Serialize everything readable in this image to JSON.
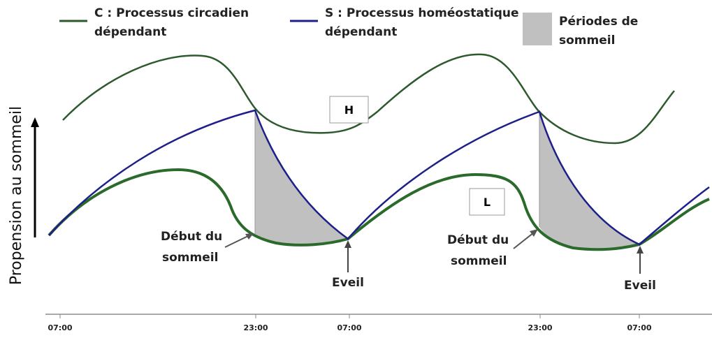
{
  "legend": [
    {
      "line1": "C : Processus circadien",
      "line2": "dépendant"
    },
    {
      "line1": "S : Processus homéostatique",
      "line2": "dépendant"
    },
    {
      "line1": "Périodes de",
      "line2": "sommeil"
    }
  ],
  "y_axis_label": "Propension au sommeil",
  "boxes": [
    "H",
    "L"
  ],
  "annotations": [
    {
      "line1": "Début du",
      "line2": "sommeil"
    },
    {
      "label": "Eveil"
    },
    {
      "line1": "Début du",
      "line2": "sommeil"
    },
    {
      "label": "Eveil"
    }
  ],
  "x_ticks": [
    "07:00",
    "23:00",
    "07:00",
    "23:00",
    "07:00"
  ]
}
